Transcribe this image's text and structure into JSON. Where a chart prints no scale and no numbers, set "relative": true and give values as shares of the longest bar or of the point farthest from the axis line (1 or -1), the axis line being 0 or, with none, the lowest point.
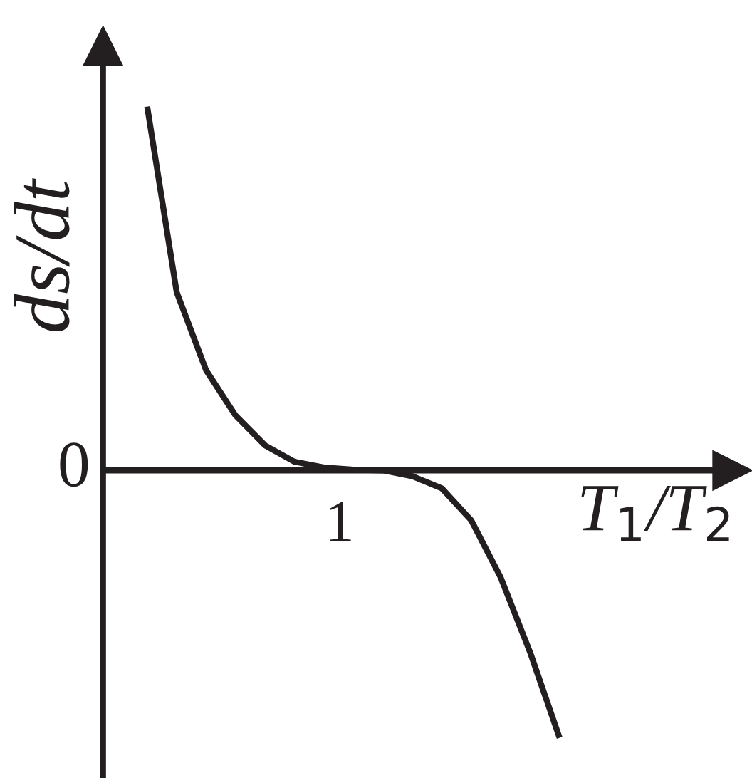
{
  "chart_data": {
    "type": "line",
    "relative": true,
    "xlabel": "T$_{1}$/T$_{2}$",
    "ylabel": "ds/dt",
    "categories": [
      null,
      null,
      null,
      null,
      null,
      null,
      null,
      null,
      null,
      null,
      null,
      null,
      null,
      null,
      null
    ],
    "series": [
      {
        "color": "#231f20",
        "values": [
          1,
          0.49,
          0.275,
          0.151,
          0.069,
          0.024,
          0.008,
          0.002,
          0,
          -0.016,
          -0.049,
          -0.137,
          -0.294,
          -0.5,
          -0.735
        ]
      }
    ],
    "annotations": [
      "0",
      "1"
    ],
    "grid": false,
    "legend": false,
    "marker": "none",
    "line_style": "solid"
  }
}
